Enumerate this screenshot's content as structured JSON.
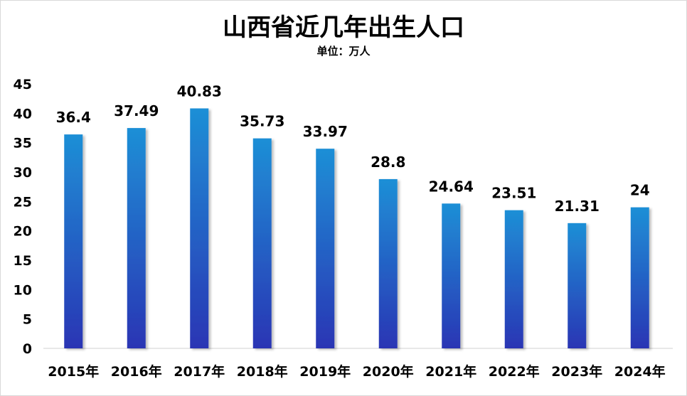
{
  "chart_data": {
    "type": "bar",
    "title": "山西省近几年出生人口",
    "subtitle": "单位：万人",
    "categories": [
      "2015年",
      "2016年",
      "2017年",
      "2018年",
      "2019年",
      "2020年",
      "2021年",
      "2022年",
      "2023年",
      "2024年"
    ],
    "values": [
      36.4,
      37.49,
      40.83,
      35.73,
      33.97,
      28.8,
      24.64,
      23.51,
      21.31,
      24
    ],
    "value_labels": [
      "36.4",
      "37.49",
      "40.83",
      "35.73",
      "33.97",
      "28.8",
      "24.64",
      "23.51",
      "21.31",
      "24"
    ],
    "xlabel": "",
    "ylabel": "",
    "ylim": [
      0,
      45
    ],
    "yticks": [
      0,
      5,
      10,
      15,
      20,
      25,
      30,
      35,
      40,
      45
    ],
    "grid": false,
    "legend": "none",
    "colors": {
      "bar_top": "#1e8fd6",
      "bar_bottom": "#2a35b4",
      "axis": "#d0d0d0",
      "text": "#000000"
    }
  }
}
